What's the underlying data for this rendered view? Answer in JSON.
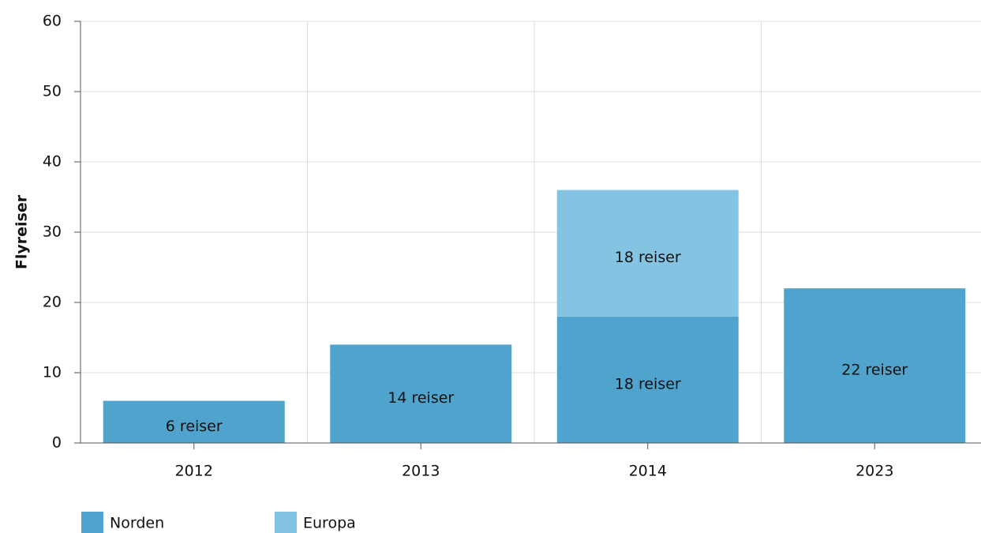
{
  "chart_data": {
    "type": "bar",
    "stacked": true,
    "y_label": "Flyreiser",
    "categories": [
      "2012",
      "2013",
      "2014",
      "2023"
    ],
    "series": [
      {
        "name": "Norden",
        "color": "#4fa3cc",
        "values": [
          6,
          14,
          18,
          22
        ],
        "value_labels": [
          "6 reiser",
          "14 reiser",
          "18 reiser",
          "22 reiser"
        ]
      },
      {
        "name": "Europa",
        "color": "#85c3e3",
        "values": [
          null,
          null,
          18,
          null
        ],
        "value_labels": [
          null,
          null,
          "18 reiser",
          null
        ]
      }
    ],
    "ylim": [
      0,
      60
    ],
    "yticks": [
      0,
      10,
      20,
      30,
      40,
      50,
      60
    ],
    "grid": true,
    "legend": "bottom-left"
  }
}
